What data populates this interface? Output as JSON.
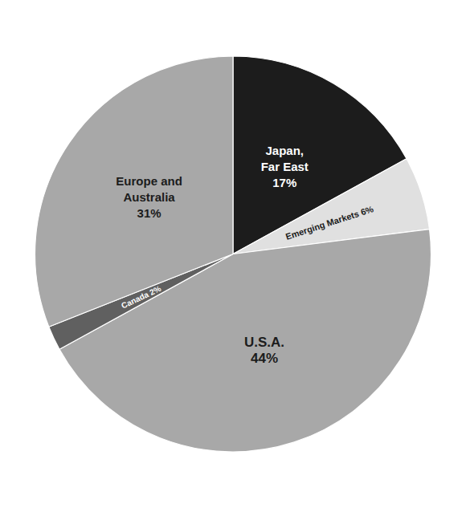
{
  "chart_data": {
    "type": "pie",
    "categories": [
      "Japan,\nFar East\n17%",
      "Emerging Markets 6%",
      "U.S.A.\n44%",
      "Canada 2%",
      "Europe and\nAustralia\n31%"
    ],
    "values": [
      17,
      6,
      44,
      2,
      31
    ],
    "colors": [
      "#1c1c1c",
      "#e0e0e0",
      "#a8a8a8",
      "#606060",
      "#a8a8a8"
    ]
  }
}
